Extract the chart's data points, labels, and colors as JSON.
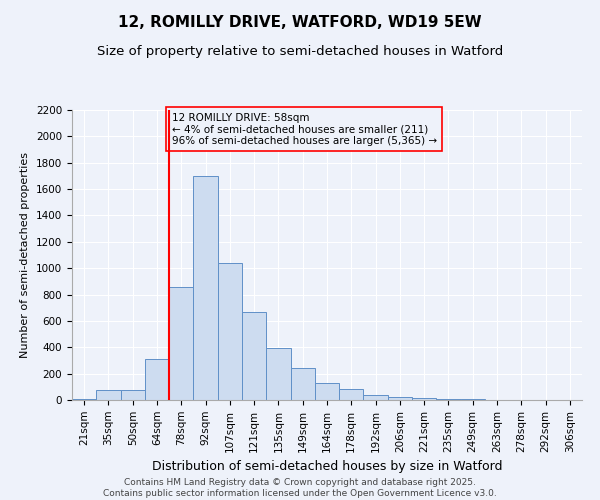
{
  "title1": "12, ROMILLY DRIVE, WATFORD, WD19 5EW",
  "title2": "Size of property relative to semi-detached houses in Watford",
  "xlabel": "Distribution of semi-detached houses by size in Watford",
  "ylabel": "Number of semi-detached properties",
  "categories": [
    "21sqm",
    "35sqm",
    "50sqm",
    "64sqm",
    "78sqm",
    "92sqm",
    "107sqm",
    "121sqm",
    "135sqm",
    "149sqm",
    "164sqm",
    "178sqm",
    "192sqm",
    "206sqm",
    "221sqm",
    "235sqm",
    "249sqm",
    "263sqm",
    "278sqm",
    "292sqm",
    "306sqm"
  ],
  "values": [
    10,
    75,
    75,
    310,
    860,
    1700,
    1040,
    670,
    395,
    245,
    130,
    80,
    35,
    25,
    15,
    8,
    4,
    3,
    2,
    1,
    1
  ],
  "bar_color": "#cddcf0",
  "bar_edge_color": "#6090c8",
  "red_line_index": 3,
  "annotation_text": "12 ROMILLY DRIVE: 58sqm\n← 4% of semi-detached houses are smaller (211)\n96% of semi-detached houses are larger (5,365) →",
  "ylim": [
    0,
    2200
  ],
  "yticks": [
    0,
    200,
    400,
    600,
    800,
    1000,
    1200,
    1400,
    1600,
    1800,
    2000,
    2200
  ],
  "footnote1": "Contains HM Land Registry data © Crown copyright and database right 2025.",
  "footnote2": "Contains public sector information licensed under the Open Government Licence v3.0.",
  "background_color": "#eef2fa",
  "title1_fontsize": 11,
  "title2_fontsize": 9.5,
  "xlabel_fontsize": 9,
  "ylabel_fontsize": 8,
  "tick_fontsize": 7.5,
  "annot_fontsize": 7.5,
  "footnote_fontsize": 6.5
}
